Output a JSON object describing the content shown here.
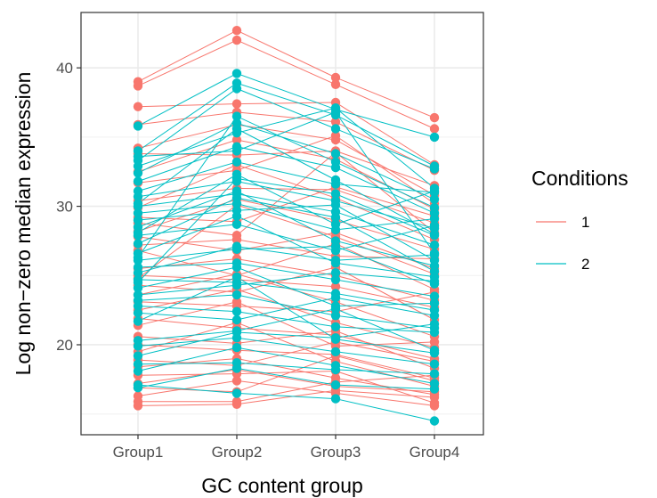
{
  "chart_data": {
    "type": "line",
    "xlabel": "GC content group",
    "ylabel": "Log non−zero median expression",
    "categories": [
      "Group1",
      "Group2",
      "Group3",
      "Group4"
    ],
    "ylim": [
      13.5,
      44.0
    ],
    "yticks": [
      20,
      30,
      40
    ],
    "grid": true,
    "legend": {
      "title": "Conditions",
      "placement": "right",
      "entries": [
        {
          "label": "1",
          "color": "#F8766D"
        },
        {
          "label": "2",
          "color": "#00BFC4"
        }
      ]
    },
    "series": [
      {
        "name": "1",
        "color": "#F8766D",
        "lines": [
          [
            39.0,
            42.7,
            39.3,
            36.4
          ],
          [
            38.7,
            42.0,
            38.8,
            35.6
          ],
          [
            37.2,
            37.4,
            37.5,
            33.0
          ],
          [
            35.9,
            36.8,
            36.1,
            32.6
          ],
          [
            34.2,
            35.9,
            34.8,
            30.8
          ],
          [
            33.8,
            33.7,
            34.0,
            31.5
          ],
          [
            32.5,
            34.8,
            33.4,
            29.8
          ],
          [
            31.7,
            32.6,
            35.1,
            30.2
          ],
          [
            30.4,
            31.3,
            31.2,
            28.8
          ],
          [
            29.9,
            33.0,
            30.6,
            27.6
          ],
          [
            29.2,
            28.9,
            31.4,
            29.3
          ],
          [
            28.2,
            30.5,
            29.0,
            26.9
          ],
          [
            27.8,
            26.8,
            28.1,
            25.5
          ],
          [
            27.2,
            27.6,
            26.4,
            26.2
          ],
          [
            26.8,
            25.0,
            27.3,
            24.0
          ],
          [
            25.5,
            26.2,
            25.0,
            23.2
          ],
          [
            25.0,
            24.7,
            24.2,
            22.7
          ],
          [
            24.3,
            23.8,
            25.6,
            21.8
          ],
          [
            23.6,
            25.1,
            23.1,
            20.6
          ],
          [
            23.1,
            22.8,
            22.4,
            23.8
          ],
          [
            22.5,
            24.0,
            21.6,
            19.8
          ],
          [
            21.9,
            21.2,
            20.7,
            19.0
          ],
          [
            21.4,
            23.1,
            19.9,
            20.2
          ],
          [
            20.6,
            20.1,
            21.0,
            18.3
          ],
          [
            20.0,
            19.6,
            19.3,
            17.6
          ],
          [
            19.5,
            21.6,
            18.8,
            17.0
          ],
          [
            18.9,
            18.5,
            20.2,
            18.8
          ],
          [
            18.4,
            19.0,
            17.6,
            16.4
          ],
          [
            17.8,
            17.9,
            18.1,
            15.8
          ],
          [
            17.2,
            18.2,
            17.0,
            16.6
          ],
          [
            16.9,
            16.6,
            19.2,
            17.4
          ],
          [
            16.3,
            17.4,
            16.5,
            15.6
          ],
          [
            15.9,
            15.9,
            17.3,
            17.8
          ],
          [
            15.6,
            15.7,
            16.7,
            16.2
          ],
          [
            28.8,
            27.9,
            33.9,
            28.1
          ],
          [
            24.8,
            30.1,
            27.8,
            25.1
          ]
        ]
      },
      {
        "name": "2",
        "color": "#00BFC4",
        "lines": [
          [
            35.8,
            39.6,
            37.0,
            35.0
          ],
          [
            34.0,
            38.9,
            36.6,
            32.9
          ],
          [
            33.3,
            38.5,
            35.6,
            32.7
          ],
          [
            32.9,
            35.3,
            37.1,
            31.3
          ],
          [
            32.4,
            36.0,
            33.8,
            30.5
          ],
          [
            31.8,
            34.3,
            32.8,
            29.5
          ],
          [
            31.1,
            33.2,
            31.6,
            31.0
          ],
          [
            30.7,
            31.8,
            30.4,
            28.4
          ],
          [
            30.0,
            30.9,
            29.6,
            27.2
          ],
          [
            29.5,
            30.2,
            28.3,
            29.1
          ],
          [
            29.0,
            29.7,
            30.1,
            26.1
          ],
          [
            28.5,
            31.1,
            27.5,
            25.7
          ],
          [
            27.9,
            28.7,
            26.8,
            28.6
          ],
          [
            27.3,
            30.6,
            29.2,
            25.3
          ],
          [
            26.6,
            29.3,
            25.9,
            24.9
          ],
          [
            26.1,
            26.9,
            27.1,
            24.4
          ],
          [
            25.6,
            25.9,
            24.7,
            23.5
          ],
          [
            25.2,
            27.1,
            26.1,
            26.5
          ],
          [
            24.7,
            24.5,
            23.7,
            22.5
          ],
          [
            24.1,
            25.6,
            22.8,
            23.0
          ],
          [
            23.6,
            24.3,
            25.2,
            24.6
          ],
          [
            23.2,
            23.6,
            22.1,
            21.2
          ],
          [
            22.8,
            22.4,
            21.3,
            20.9
          ],
          [
            22.3,
            21.8,
            23.4,
            22.1
          ],
          [
            21.7,
            24.9,
            20.4,
            19.4
          ],
          [
            20.3,
            21.0,
            22.6,
            19.6
          ],
          [
            19.9,
            20.5,
            19.5,
            18.6
          ],
          [
            19.2,
            20.9,
            20.5,
            21.5
          ],
          [
            18.6,
            18.7,
            18.2,
            17.9
          ],
          [
            18.1,
            19.8,
            18.5,
            17.2
          ],
          [
            17.1,
            16.5,
            16.1,
            14.5
          ],
          [
            16.9,
            18.3,
            17.1,
            16.8
          ],
          [
            30.2,
            35.6,
            31.9,
            28.0
          ],
          [
            28.1,
            32.3,
            28.7,
            31.1
          ],
          [
            26.3,
            36.5,
            33.2,
            29.9
          ],
          [
            24.5,
            32.0,
            30.9,
            27.9
          ],
          [
            33.6,
            34.0,
            36.8,
            26.6
          ]
        ]
      }
    ]
  }
}
